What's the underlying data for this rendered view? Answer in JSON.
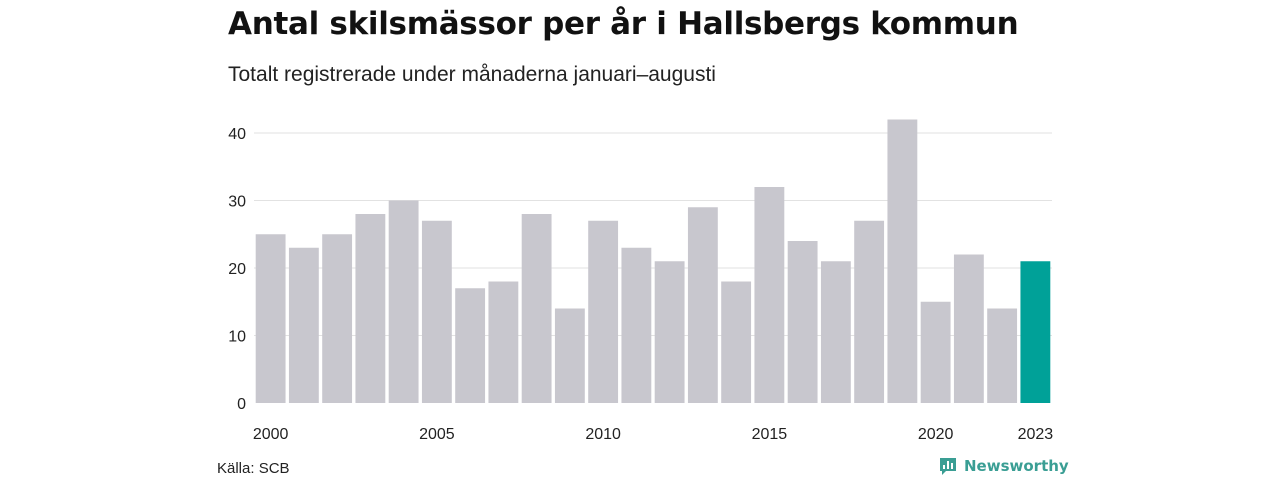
{
  "header": {
    "title": "Antal skilsmässor per år i Hallsbergs kommun",
    "subtitle": "Totalt registrerade under månaderna januari–augusti"
  },
  "footer": {
    "source": "Källa: SCB",
    "brand": "Newsworthy",
    "brand_icon": "bar-chart-speech-bubble-icon"
  },
  "colors": {
    "bar": "#c8c7ce",
    "highlight": "#00a198",
    "grid": "#e2e2e2",
    "text": "#222222",
    "brand": "#3a9e94"
  },
  "chart_data": {
    "type": "bar",
    "title": "Antal skilsmässor per år i Hallsbergs kommun",
    "subtitle": "Totalt registrerade under månaderna januari–augusti",
    "xlabel": "",
    "ylabel": "",
    "categories": [
      2000,
      2001,
      2002,
      2003,
      2004,
      2005,
      2006,
      2007,
      2008,
      2009,
      2010,
      2011,
      2012,
      2013,
      2014,
      2015,
      2016,
      2017,
      2018,
      2019,
      2020,
      2021,
      2022,
      2023
    ],
    "values": [
      25,
      23,
      25,
      28,
      30,
      27,
      17,
      18,
      28,
      14,
      27,
      23,
      21,
      29,
      18,
      32,
      24,
      21,
      27,
      42,
      15,
      22,
      14,
      21
    ],
    "highlight": 2023,
    "xticks": [
      2000,
      2005,
      2010,
      2015,
      2020,
      2023
    ],
    "yticks": [
      0,
      10,
      20,
      30,
      40
    ],
    "ylim": [
      0,
      42
    ],
    "grid": true,
    "legend": "none"
  }
}
